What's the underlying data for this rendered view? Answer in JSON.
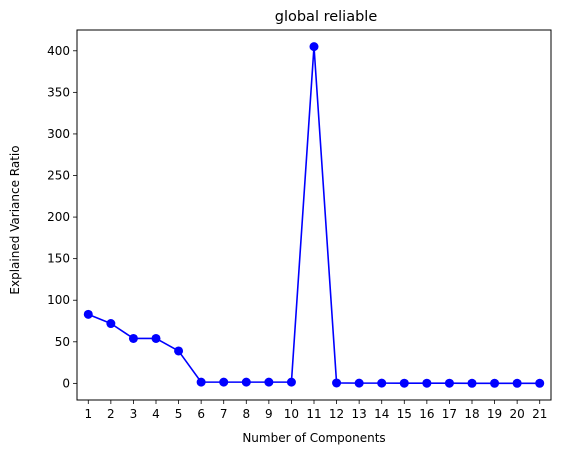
{
  "chart_data": {
    "type": "line",
    "title": "global reliable",
    "xlabel": "Number of Components",
    "ylabel": "Explained Variance Ratio",
    "x": [
      1,
      2,
      3,
      4,
      5,
      6,
      7,
      8,
      9,
      10,
      11,
      12,
      13,
      14,
      15,
      16,
      17,
      18,
      19,
      20,
      21
    ],
    "series": [
      {
        "values": [
          83,
          72,
          54,
          54,
          39,
          1.5,
          1.5,
          1.5,
          1.5,
          1.5,
          405,
          0.5,
          0.3,
          0.3,
          0.2,
          0.2,
          0.2,
          0.1,
          0.1,
          0.1,
          0.1
        ],
        "color": "#0000ff",
        "marker": "circle"
      }
    ],
    "xlim": [
      0.5,
      21.5
    ],
    "ylim": [
      -20,
      425
    ],
    "yticks": [
      0,
      50,
      100,
      150,
      200,
      250,
      300,
      350,
      400
    ],
    "grid": false,
    "legend": "none"
  }
}
